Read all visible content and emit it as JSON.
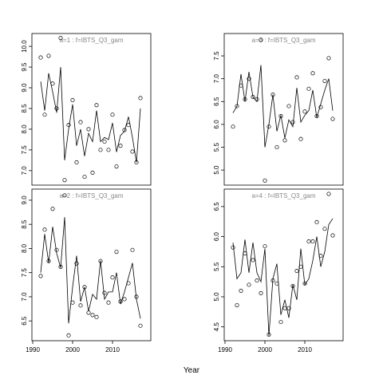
{
  "xlabel": "Year",
  "chart_data": [
    {
      "type": "line",
      "title": "a=1  :  f=IBTS_Q3_gam",
      "x": [
        1992,
        1993,
        1994,
        1995,
        1996,
        1997,
        1998,
        1999,
        2000,
        2001,
        2002,
        2003,
        2004,
        2005,
        2006,
        2007,
        2008,
        2009,
        2010,
        2011,
        2012,
        2013,
        2014,
        2015,
        2016,
        2017
      ],
      "series": [
        {
          "kind": "points",
          "color": "#000000",
          "values": [
            9.73,
            8.35,
            9.77,
            9.1,
            8.5,
            10.2,
            6.77,
            8.1,
            8.7,
            7.2,
            8.17,
            6.85,
            8.0,
            6.95,
            8.58,
            7.5,
            7.7,
            7.5,
            8.35,
            7.1,
            7.6,
            7.98,
            8.1,
            7.46,
            7.2,
            8.75
          ]
        },
        {
          "kind": "line",
          "color": "#000000",
          "values": [
            9.15,
            8.45,
            9.35,
            8.9,
            8.4,
            9.5,
            7.25,
            8.0,
            8.6,
            7.6,
            8.0,
            7.35,
            7.9,
            7.7,
            8.45,
            7.7,
            7.8,
            7.75,
            8.15,
            7.45,
            7.85,
            7.95,
            8.3,
            7.8,
            7.2,
            8.5
          ]
        }
      ],
      "xlim": [
        1989.8,
        2019.6
      ],
      "ylim": [
        6.65,
        10.31
      ],
      "yticks": [
        {
          "value": 7,
          "label": "7.0"
        },
        7.5,
        {
          "value": 8,
          "label": "8.0"
        },
        8.5,
        {
          "value": 9,
          "label": "9.0"
        },
        9.5,
        {
          "value": 10,
          "label": "10.0"
        }
      ]
    },
    {
      "type": "line",
      "title": "a=3  :  f=IBTS_Q3_gam",
      "x": [
        1992,
        1993,
        1994,
        1995,
        1996,
        1997,
        1998,
        1999,
        2000,
        2001,
        2002,
        2003,
        2004,
        2005,
        2006,
        2007,
        2008,
        2009,
        2010,
        2011,
        2012,
        2013,
        2014,
        2015,
        2016,
        2017
      ],
      "series": [
        {
          "kind": "points",
          "color": "#000000",
          "values": [
            5.95,
            6.4,
            6.85,
            6.55,
            7.0,
            6.6,
            6.55,
            7.85,
            4.77,
            5.95,
            6.65,
            5.5,
            6.18,
            5.65,
            6.4,
            6.05,
            7.03,
            5.68,
            6.28,
            6.78,
            7.12,
            6.18,
            6.38,
            6.95,
            7.45,
            6.12
          ]
        },
        {
          "kind": "line",
          "color": "#000000",
          "values": [
            6.25,
            6.4,
            7.1,
            6.5,
            7.15,
            6.6,
            6.5,
            7.3,
            5.5,
            6.0,
            6.65,
            5.85,
            6.2,
            5.7,
            6.1,
            5.95,
            6.8,
            6.05,
            6.2,
            6.3,
            6.75,
            6.15,
            6.45,
            6.75,
            7.0,
            6.3
          ]
        }
      ],
      "xlim": [
        1989.8,
        2019.6
      ],
      "ylim": [
        4.67,
        7.99
      ],
      "yticks": [
        {
          "value": 5,
          "label": "5.0"
        },
        5.5,
        {
          "value": 6,
          "label": "6.0"
        },
        6.5,
        {
          "value": 7,
          "label": "7.0"
        },
        7.5
      ]
    },
    {
      "type": "line",
      "title": "a=2  :  f=IBTS_Q3_gam",
      "x": [
        1992,
        1993,
        1994,
        1995,
        1996,
        1997,
        1998,
        1999,
        2000,
        2001,
        2002,
        2003,
        2004,
        2005,
        2006,
        2007,
        2008,
        2009,
        2010,
        2011,
        2012,
        2013,
        2014,
        2015,
        2016,
        2017
      ],
      "series": [
        {
          "kind": "points",
          "color": "#000000",
          "values": [
            7.43,
            8.39,
            7.74,
            8.82,
            7.97,
            7.62,
            9.1,
            6.2,
            6.88,
            7.69,
            6.82,
            7.2,
            6.67,
            6.62,
            6.58,
            7.74,
            7.08,
            6.88,
            7.4,
            7.93,
            6.9,
            6.95,
            7.28,
            7.97,
            7.0,
            6.4
          ]
        },
        {
          "kind": "line",
          "color": "#000000",
          "values": [
            7.5,
            8.3,
            7.7,
            8.45,
            7.9,
            7.6,
            8.65,
            6.45,
            7.2,
            7.85,
            6.9,
            7.2,
            6.7,
            7.05,
            6.95,
            7.75,
            6.95,
            7.1,
            7.1,
            7.5,
            6.85,
            7.1,
            7.4,
            7.7,
            6.95,
            6.55
          ]
        }
      ],
      "xlim": [
        1989.8,
        2019.6
      ],
      "ylim": [
        6.09,
        9.23
      ],
      "xticks": [
        1990,
        2000,
        2010
      ],
      "yticks": [
        6.5,
        {
          "value": 7,
          "label": "7.0"
        },
        7.5,
        {
          "value": 8,
          "label": "8.0"
        },
        8.5,
        {
          "value": 9,
          "label": "9.0"
        }
      ]
    },
    {
      "type": "line",
      "title": "a=4  :  f=IBTS_Q3_gam",
      "x": [
        1992,
        1993,
        1994,
        1995,
        1996,
        1997,
        1998,
        1999,
        2000,
        2001,
        2002,
        2003,
        2004,
        2005,
        2006,
        2007,
        2008,
        2009,
        2010,
        2011,
        2012,
        2013,
        2014,
        2015,
        2016,
        2017
      ],
      "series": [
        {
          "kind": "points",
          "color": "#000000",
          "values": [
            5.82,
            4.86,
            5.1,
            5.72,
            5.2,
            5.61,
            5.27,
            5.06,
            5.84,
            4.37,
            5.27,
            5.22,
            4.58,
            4.81,
            4.81,
            5.18,
            5.43,
            5.5,
            5.22,
            5.92,
            5.92,
            6.24,
            5.68,
            6.13,
            6.71,
            6.02
          ]
        },
        {
          "kind": "line",
          "color": "#000000",
          "values": [
            5.9,
            5.3,
            5.4,
            5.95,
            5.4,
            5.9,
            5.4,
            5.25,
            5.8,
            4.35,
            5.3,
            5.55,
            4.7,
            4.95,
            4.65,
            5.2,
            4.95,
            5.8,
            5.2,
            5.3,
            5.6,
            6.0,
            5.5,
            5.75,
            6.2,
            6.3
          ]
        }
      ],
      "xlim": [
        1989.8,
        2019.6
      ],
      "ylim": [
        4.27,
        6.79
      ],
      "xticks": [
        1990,
        2000,
        2010
      ],
      "yticks": [
        4.5,
        {
          "value": 5,
          "label": "5.0"
        },
        5.5,
        {
          "value": 6,
          "label": "6.0"
        },
        6.5
      ]
    }
  ]
}
